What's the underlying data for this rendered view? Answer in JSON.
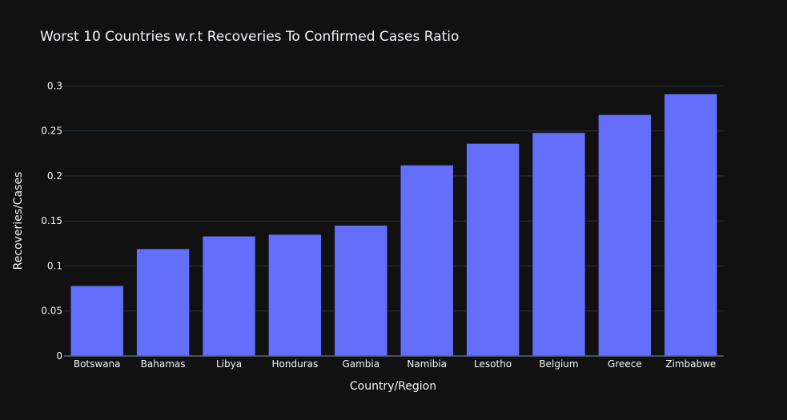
{
  "chart_data": {
    "type": "bar",
    "title": "Worst 10 Countries w.r.t Recoveries To Confirmed Cases Ratio",
    "xlabel": "Country/Region",
    "ylabel": "Recoveries/Cases",
    "categories": [
      "Botswana",
      "Bahamas",
      "Libya",
      "Honduras",
      "Gambia",
      "Namibia",
      "Lesotho",
      "Belgium",
      "Greece",
      "Zimbabwe"
    ],
    "values": [
      0.078,
      0.119,
      0.133,
      0.135,
      0.145,
      0.212,
      0.236,
      0.248,
      0.268,
      0.291
    ],
    "ylim": [
      0,
      0.3
    ],
    "yticks": [
      0,
      0.05,
      0.1,
      0.15,
      0.2,
      0.25,
      0.3
    ],
    "ytick_labels": [
      "0",
      "0.05",
      "0.1",
      "0.15",
      "0.2",
      "0.25",
      "0.3"
    ],
    "grid": true,
    "bar_color": "#636efa",
    "background_color": "#111111"
  }
}
